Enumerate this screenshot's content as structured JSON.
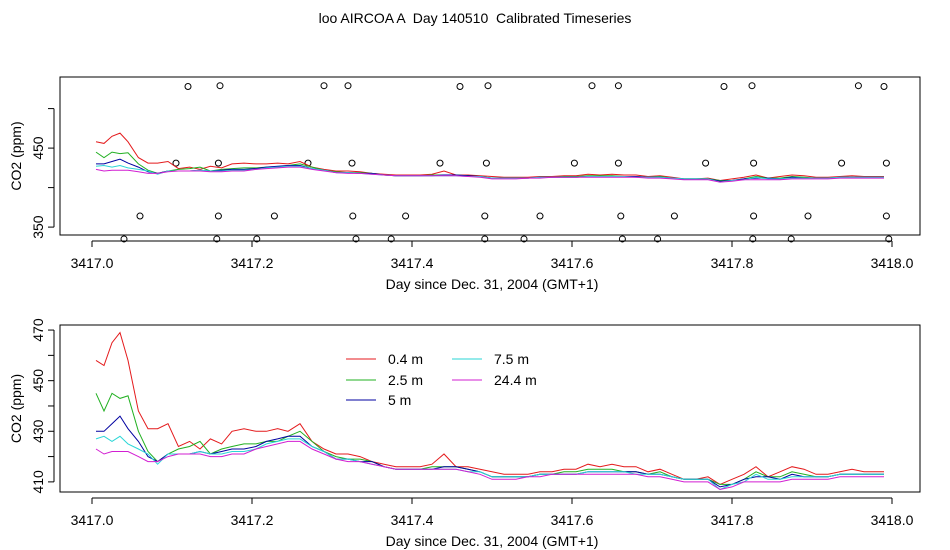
{
  "title": "loo AIRCOA A  Day 140510  Calibrated Timeseries",
  "chart_data": [
    {
      "type": "line",
      "xlabel": "Day since Dec. 31, 2004 (GMT+1)",
      "ylabel": "CO2 (ppm)",
      "xlim": [
        3417.0,
        3418.0
      ],
      "ylim": [
        340,
        540
      ],
      "xticks": [
        "3417.0",
        "3417.2",
        "3417.4",
        "3417.6",
        "3417.8",
        "3418.0"
      ],
      "xtick_values": [
        3417.0,
        3417.2,
        3417.4,
        3417.6,
        3417.8,
        3418.0
      ],
      "yticks": [
        "350",
        "450"
      ],
      "ytick_values": [
        350,
        400,
        450,
        500
      ],
      "ytick_labeled": [
        true,
        false,
        true,
        false
      ],
      "grid": false,
      "points": {
        "name": "calibration",
        "x": [
          3417.12,
          3417.16,
          3417.29,
          3417.32,
          3417.46,
          3417.495,
          3417.625,
          3417.658,
          3417.79,
          3417.825,
          3417.958,
          3417.99,
          3417.105,
          3417.158,
          3417.27,
          3417.325,
          3417.435,
          3417.493,
          3417.603,
          3417.658,
          3417.767,
          3417.827,
          3417.937,
          3417.993,
          3417.06,
          3417.158,
          3417.228,
          3417.326,
          3417.392,
          3417.491,
          3417.56,
          3417.661,
          3417.728,
          3417.827,
          3417.895,
          3417.993,
          3417.04,
          3417.156,
          3417.206,
          3417.33,
          3417.374,
          3417.491,
          3417.54,
          3417.663,
          3417.707,
          3417.826,
          3417.874,
          3417.996
        ],
        "y": [
          528,
          529,
          529,
          529,
          528,
          529,
          529,
          529,
          528,
          529,
          529,
          528,
          431,
          431,
          431,
          431,
          431,
          431,
          431,
          431,
          431,
          431,
          431,
          431,
          364,
          364,
          364,
          364,
          364,
          364,
          364,
          364,
          364,
          364,
          364,
          364,
          335,
          335,
          335,
          335,
          335,
          335,
          335,
          335,
          335,
          335,
          335,
          335
        ]
      }
    },
    {
      "type": "line",
      "xlabel": "Day since Dec. 31, 2004 (GMT+1)",
      "ylabel": "CO2 (ppm)",
      "xlim": [
        3417.0,
        3418.0
      ],
      "ylim": [
        406,
        472
      ],
      "xticks": [
        "3417.0",
        "3417.2",
        "3417.4",
        "3417.6",
        "3417.8",
        "3418.0"
      ],
      "xtick_values": [
        3417.0,
        3417.2,
        3417.4,
        3417.6,
        3417.8,
        3418.0
      ],
      "yticks": [
        "410",
        "430",
        "450",
        "470"
      ],
      "ytick_values": [
        410,
        420,
        430,
        440,
        450,
        460,
        470
      ],
      "ytick_labeled": [
        true,
        false,
        true,
        false,
        true,
        false,
        true
      ],
      "grid": false,
      "legend": {
        "position": "top-center",
        "entries": [
          {
            "label": "0.4 m",
            "color": "#e41a1c"
          },
          {
            "label": "2.5 m",
            "color": "#22b022"
          },
          {
            "label": "5 m",
            "color": "#0000a0"
          },
          {
            "label": "7.5 m",
            "color": "#2ad6d6"
          },
          {
            "label": "24.4 m",
            "color": "#d21fd2"
          }
        ]
      },
      "x": [
        3417.005,
        3417.015,
        3417.025,
        3417.035,
        3417.045,
        3417.058,
        3417.07,
        3417.082,
        3417.095,
        3417.108,
        3417.122,
        3417.135,
        3417.148,
        3417.162,
        3417.175,
        3417.19,
        3417.205,
        3417.218,
        3417.232,
        3417.245,
        3417.26,
        3417.275,
        3417.29,
        3417.305,
        3417.32,
        3417.335,
        3417.35,
        3417.365,
        3417.38,
        3417.395,
        3417.41,
        3417.425,
        3417.44,
        3417.455,
        3417.47,
        3417.485,
        3417.5,
        3417.515,
        3417.53,
        3417.545,
        3417.56,
        3417.575,
        3417.59,
        3417.605,
        3417.62,
        3417.635,
        3417.65,
        3417.665,
        3417.68,
        3417.695,
        3417.71,
        3417.725,
        3417.74,
        3417.755,
        3417.77,
        3417.785,
        3417.8,
        3417.815,
        3417.83,
        3417.845,
        3417.86,
        3417.875,
        3417.89,
        3417.905,
        3417.92,
        3417.935,
        3417.95,
        3417.965,
        3417.98,
        3417.99
      ],
      "series": [
        {
          "name": "0.4 m",
          "color": "#e41a1c",
          "values": [
            458,
            456,
            465,
            469,
            458,
            438,
            431,
            431,
            433,
            424,
            426,
            423,
            427,
            425,
            430,
            431,
            430,
            430,
            431,
            430,
            433,
            426,
            423,
            421,
            421,
            420,
            418,
            417,
            416,
            416,
            416,
            417,
            421,
            416,
            416,
            415,
            414,
            413,
            413,
            413,
            414,
            414,
            415,
            415,
            417,
            416,
            417,
            416,
            416,
            414,
            415,
            413,
            411,
            411,
            412,
            409,
            411,
            413,
            416,
            412,
            414,
            416,
            415,
            413,
            413,
            414,
            415,
            414,
            414,
            414
          ]
        },
        {
          "name": "2.5 m",
          "color": "#22b022",
          "values": [
            445,
            438,
            445,
            443,
            444,
            430,
            422,
            418,
            421,
            423,
            424,
            426,
            421,
            423,
            424,
            425,
            425,
            426,
            426,
            428,
            430,
            426,
            422,
            420,
            419,
            419,
            418,
            416,
            415,
            415,
            415,
            416,
            416,
            416,
            415,
            414,
            412,
            412,
            412,
            412,
            413,
            413,
            414,
            414,
            415,
            415,
            415,
            414,
            414,
            413,
            414,
            412,
            411,
            411,
            411,
            409,
            409,
            411,
            414,
            412,
            412,
            414,
            413,
            412,
            412,
            413,
            413,
            413,
            413,
            413
          ]
        },
        {
          "name": "5 m",
          "color": "#0000a0",
          "values": [
            430,
            430,
            433,
            436,
            431,
            426,
            420,
            418,
            421,
            421,
            421,
            422,
            421,
            422,
            423,
            423,
            424,
            426,
            427,
            428,
            428,
            424,
            422,
            419,
            419,
            418,
            418,
            416,
            415,
            415,
            415,
            415,
            416,
            416,
            415,
            414,
            412,
            412,
            412,
            412,
            413,
            413,
            413,
            413,
            414,
            414,
            414,
            414,
            414,
            413,
            413,
            412,
            411,
            411,
            411,
            408,
            409,
            411,
            412,
            412,
            411,
            413,
            412,
            412,
            412,
            413,
            413,
            413,
            413,
            413
          ]
        },
        {
          "name": "7.5 m",
          "color": "#2ad6d6",
          "values": [
            427,
            428,
            426,
            428,
            425,
            423,
            421,
            417,
            421,
            421,
            421,
            422,
            421,
            421,
            422,
            422,
            423,
            425,
            426,
            427,
            427,
            424,
            422,
            419,
            419,
            418,
            417,
            416,
            415,
            415,
            415,
            415,
            415,
            415,
            414,
            414,
            412,
            412,
            412,
            412,
            413,
            413,
            413,
            413,
            414,
            414,
            414,
            414,
            413,
            413,
            413,
            412,
            411,
            411,
            411,
            407,
            409,
            410,
            413,
            411,
            411,
            412,
            412,
            412,
            412,
            413,
            413,
            413,
            413,
            413
          ]
        },
        {
          "name": "24.4 m",
          "color": "#d21fd2",
          "values": [
            423,
            421,
            422,
            422,
            422,
            420,
            418,
            418,
            420,
            421,
            421,
            421,
            420,
            420,
            421,
            421,
            423,
            424,
            425,
            426,
            426,
            423,
            421,
            419,
            418,
            418,
            417,
            416,
            415,
            415,
            415,
            415,
            415,
            415,
            414,
            413,
            411,
            411,
            411,
            412,
            412,
            413,
            413,
            413,
            413,
            413,
            413,
            413,
            413,
            412,
            412,
            411,
            410,
            410,
            410,
            407,
            408,
            410,
            410,
            410,
            410,
            411,
            411,
            411,
            411,
            412,
            412,
            412,
            412,
            412
          ]
        }
      ]
    }
  ]
}
